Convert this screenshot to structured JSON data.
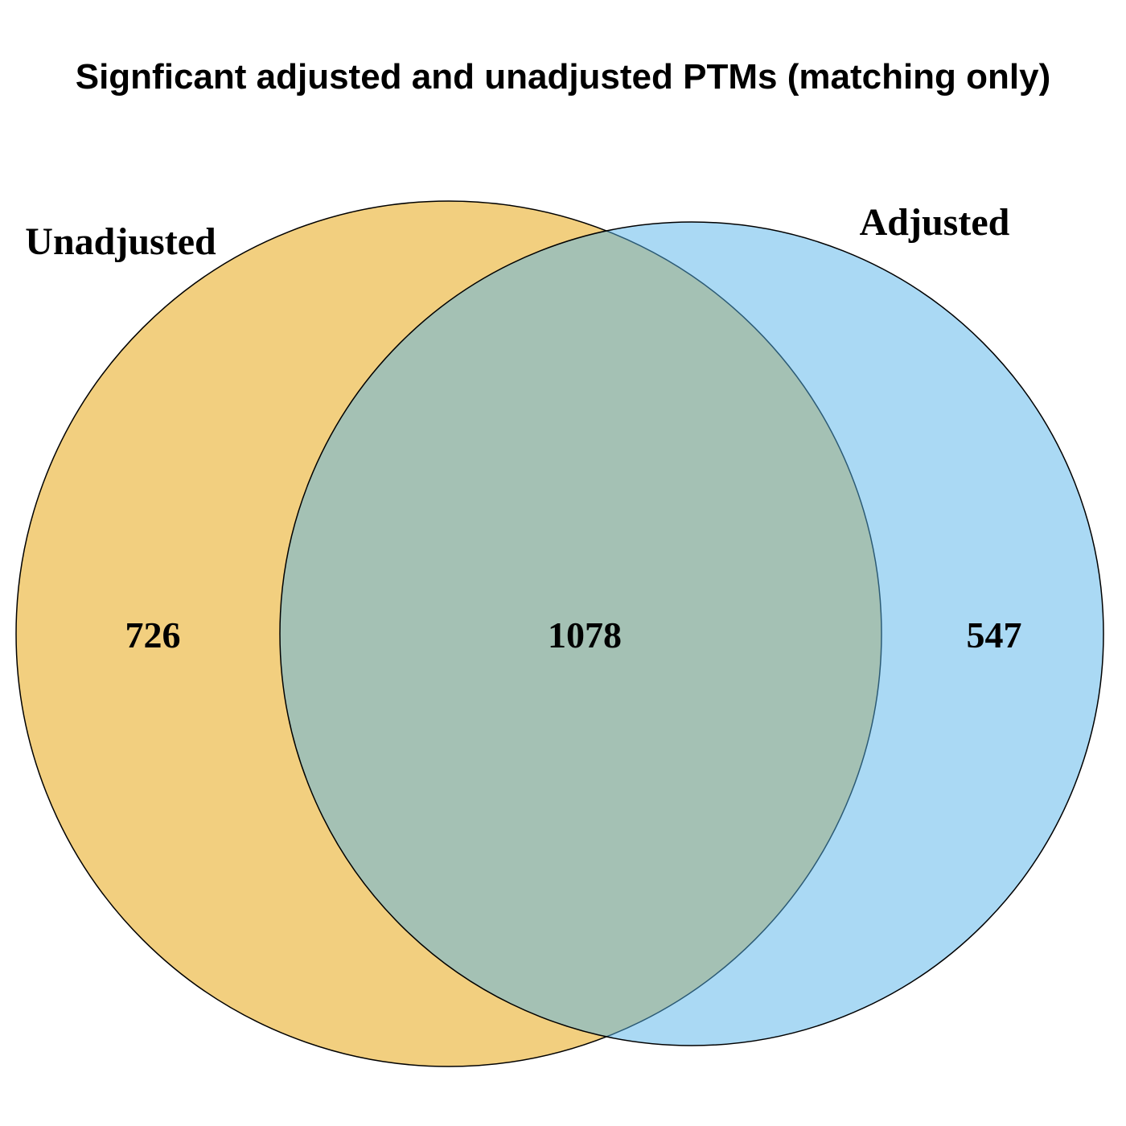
{
  "title": "Signficant adjusted and unadjusted PTMs (matching only)",
  "sets": [
    {
      "name": "Unadjusted",
      "color": "#E69F00",
      "opacity": 0.5
    },
    {
      "name": "Adjusted",
      "color": "#56B4E9",
      "opacity": 0.5
    }
  ],
  "counts": {
    "unadjusted_only": "726",
    "both": "1078",
    "adjusted_only": "547"
  },
  "stroke_color": "#000000"
}
